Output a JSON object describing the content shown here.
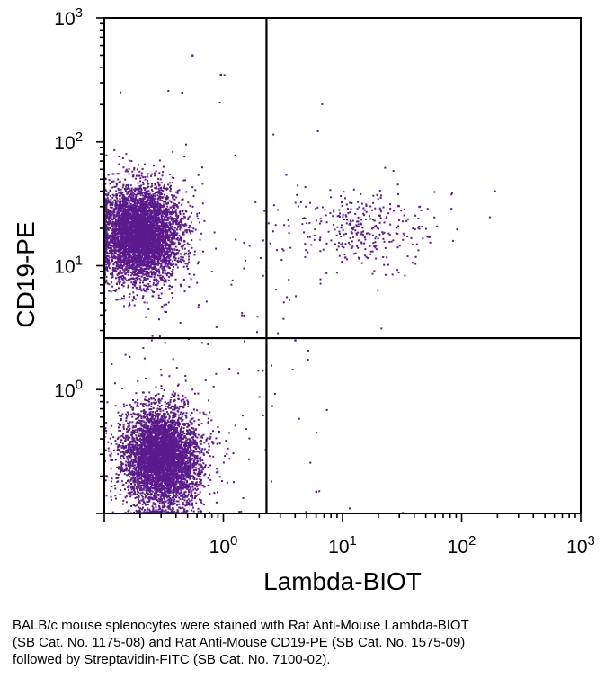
{
  "chart_data": {
    "type": "scatter",
    "subtype": "flow cytometry dot plot (log-log) with quadrant gates",
    "xlabel": "Lambda-BIOT",
    "ylabel": "CD19-PE",
    "xscale": "log",
    "yscale": "log",
    "xlim": [
      0.1,
      1000
    ],
    "ylim": [
      0.1,
      1000
    ],
    "x_ticks": [
      {
        "base": "10",
        "exp": "0",
        "value": 1
      },
      {
        "base": "10",
        "exp": "1",
        "value": 10
      },
      {
        "base": "10",
        "exp": "2",
        "value": 100
      },
      {
        "base": "10",
        "exp": "3",
        "value": 1000
      }
    ],
    "y_ticks": [
      {
        "base": "10",
        "exp": "0",
        "value": 1
      },
      {
        "base": "10",
        "exp": "1",
        "value": 10
      },
      {
        "base": "10",
        "exp": "2",
        "value": 100
      },
      {
        "base": "10",
        "exp": "3",
        "value": 1000
      }
    ],
    "quadrant_gates": {
      "x": 2.3,
      "y": 2.6
    },
    "point_color": "#5b1b8c",
    "populations": [
      {
        "name": "CD19+ Lambda- (upper-left cluster)",
        "x_center": 0.2,
        "y_center": 18,
        "x_spread_decades": 0.17,
        "y_spread_decades": 0.19,
        "count": 5200
      },
      {
        "name": "CD19- Lambda- (lower-left cluster)",
        "x_center": 0.3,
        "y_center": 0.28,
        "x_spread_decades": 0.16,
        "y_spread_decades": 0.2,
        "count": 4800
      },
      {
        "name": "CD19+ Lambda+ (upper-right scatter)",
        "x_center": 15,
        "y_center": 20,
        "x_spread_decades": 0.33,
        "y_spread_decades": 0.17,
        "count": 330
      },
      {
        "name": "Sparse background events",
        "x_center": 1,
        "y_center": 2,
        "x_spread_decades": 0.6,
        "y_spread_decades": 0.9,
        "count": 160
      }
    ],
    "outliers": [
      {
        "x": 0.55,
        "y": 500
      },
      {
        "x": 0.95,
        "y": 350
      },
      {
        "x": 0.45,
        "y": 250
      },
      {
        "x": 190,
        "y": 40
      },
      {
        "x": 6,
        "y": 0.15
      },
      {
        "x": 4,
        "y": 2.5
      }
    ]
  },
  "caption": {
    "lines": [
      "BALB/c mouse splenocytes were stained with Rat Anti-Mouse Lambda-BIOT",
      "(SB Cat. No. 1175-08) and Rat Anti-Mouse CD19-PE (SB Cat. No. 1575-09)",
      "followed by Streptavidin-FITC (SB Cat. No. 7100-02)."
    ]
  }
}
